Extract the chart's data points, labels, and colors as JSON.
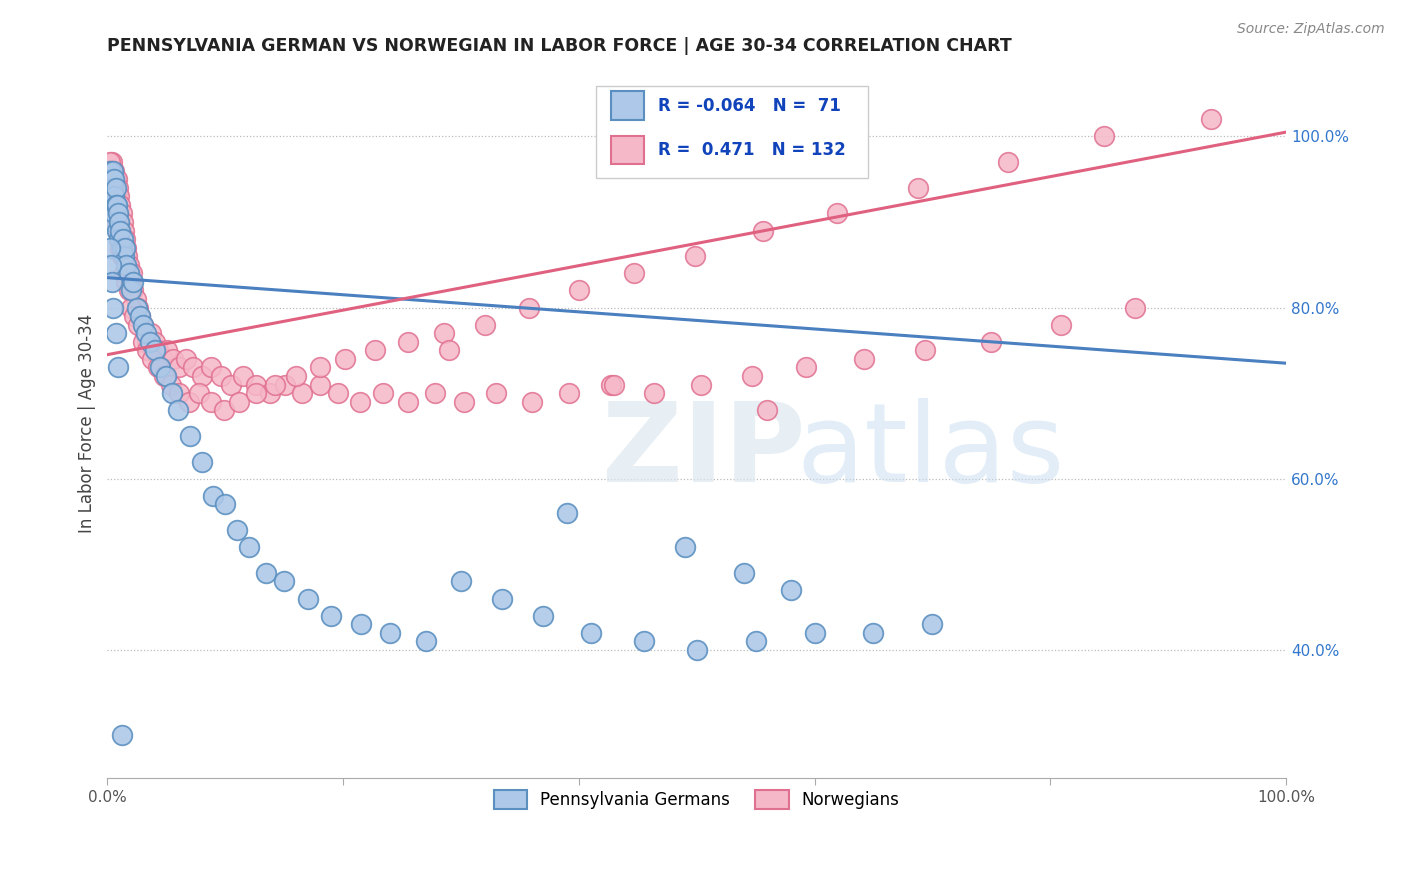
{
  "title": "PENNSYLVANIA GERMAN VS NORWEGIAN IN LABOR FORCE | AGE 30-34 CORRELATION CHART",
  "source": "Source: ZipAtlas.com",
  "ylabel": "In Labor Force | Age 30-34",
  "xlim": [
    0.0,
    1.0
  ],
  "ylim": [
    0.25,
    1.08
  ],
  "yticks": [
    0.4,
    0.6,
    0.8,
    1.0
  ],
  "ytick_labels": [
    "40.0%",
    "60.0%",
    "80.0%",
    "100.0%"
  ],
  "xticks": [
    0.0,
    0.2,
    0.4,
    0.6,
    0.8,
    1.0
  ],
  "xtick_labels": [
    "0.0%",
    "",
    "",
    "",
    "",
    "100.0%"
  ],
  "legend_labels": [
    "Pennsylvania Germans",
    "Norwegians"
  ],
  "r_blue": "-0.064",
  "n_blue": "71",
  "r_pink": "0.471",
  "n_pink": "132",
  "blue_fill": "#adc8e8",
  "blue_edge": "#5a8fc0",
  "pink_fill": "#f5b8c8",
  "pink_edge": "#e07090",
  "blue_line": "#4a7fc0",
  "pink_line": "#e06080",
  "blue_line_y0": 0.835,
  "blue_line_y1": 0.735,
  "pink_line_y0": 0.745,
  "pink_line_y1": 1.005,
  "blue_scatter_x": [
    0.002,
    0.003,
    0.003,
    0.004,
    0.004,
    0.005,
    0.005,
    0.005,
    0.006,
    0.006,
    0.006,
    0.007,
    0.007,
    0.008,
    0.008,
    0.009,
    0.01,
    0.01,
    0.011,
    0.012,
    0.013,
    0.014,
    0.015,
    0.016,
    0.018,
    0.02,
    0.022,
    0.025,
    0.028,
    0.03,
    0.033,
    0.036,
    0.04,
    0.045,
    0.05,
    0.055,
    0.06,
    0.07,
    0.08,
    0.09,
    0.1,
    0.11,
    0.12,
    0.135,
    0.15,
    0.17,
    0.19,
    0.215,
    0.24,
    0.27,
    0.3,
    0.335,
    0.37,
    0.41,
    0.455,
    0.5,
    0.55,
    0.6,
    0.65,
    0.7,
    0.39,
    0.49,
    0.54,
    0.58,
    0.002,
    0.003,
    0.004,
    0.005,
    0.007,
    0.009,
    0.012
  ],
  "blue_scatter_y": [
    0.96,
    0.95,
    0.93,
    0.95,
    0.92,
    0.96,
    0.94,
    0.9,
    0.95,
    0.93,
    0.91,
    0.94,
    0.92,
    0.92,
    0.89,
    0.91,
    0.9,
    0.88,
    0.89,
    0.87,
    0.88,
    0.86,
    0.87,
    0.85,
    0.84,
    0.82,
    0.83,
    0.8,
    0.79,
    0.78,
    0.77,
    0.76,
    0.75,
    0.73,
    0.72,
    0.7,
    0.68,
    0.65,
    0.62,
    0.58,
    0.57,
    0.54,
    0.52,
    0.49,
    0.48,
    0.46,
    0.44,
    0.43,
    0.42,
    0.41,
    0.48,
    0.46,
    0.44,
    0.42,
    0.41,
    0.4,
    0.41,
    0.42,
    0.42,
    0.43,
    0.56,
    0.52,
    0.49,
    0.47,
    0.87,
    0.85,
    0.83,
    0.8,
    0.77,
    0.73,
    0.3
  ],
  "pink_scatter_x": [
    0.002,
    0.003,
    0.003,
    0.004,
    0.004,
    0.004,
    0.005,
    0.005,
    0.005,
    0.006,
    0.006,
    0.006,
    0.007,
    0.007,
    0.007,
    0.008,
    0.008,
    0.008,
    0.009,
    0.009,
    0.01,
    0.01,
    0.011,
    0.011,
    0.012,
    0.012,
    0.013,
    0.013,
    0.014,
    0.015,
    0.016,
    0.017,
    0.018,
    0.019,
    0.02,
    0.021,
    0.022,
    0.024,
    0.026,
    0.028,
    0.03,
    0.032,
    0.034,
    0.037,
    0.04,
    0.043,
    0.047,
    0.051,
    0.056,
    0.061,
    0.067,
    0.073,
    0.08,
    0.088,
    0.096,
    0.105,
    0.115,
    0.126,
    0.138,
    0.151,
    0.165,
    0.18,
    0.196,
    0.214,
    0.234,
    0.255,
    0.278,
    0.303,
    0.33,
    0.36,
    0.392,
    0.427,
    0.464,
    0.504,
    0.547,
    0.593,
    0.642,
    0.694,
    0.75,
    0.809,
    0.872,
    0.002,
    0.003,
    0.004,
    0.005,
    0.006,
    0.007,
    0.008,
    0.009,
    0.01,
    0.011,
    0.012,
    0.014,
    0.016,
    0.018,
    0.02,
    0.023,
    0.026,
    0.03,
    0.034,
    0.038,
    0.043,
    0.048,
    0.054,
    0.061,
    0.069,
    0.078,
    0.088,
    0.099,
    0.112,
    0.126,
    0.142,
    0.16,
    0.18,
    0.202,
    0.227,
    0.255,
    0.286,
    0.32,
    0.358,
    0.4,
    0.447,
    0.499,
    0.556,
    0.619,
    0.688,
    0.764,
    0.846,
    0.936,
    0.29,
    0.43,
    0.56
  ],
  "pink_scatter_y": [
    0.94,
    0.96,
    0.93,
    0.97,
    0.95,
    0.92,
    0.96,
    0.94,
    0.91,
    0.96,
    0.94,
    0.91,
    0.95,
    0.93,
    0.9,
    0.95,
    0.93,
    0.9,
    0.94,
    0.91,
    0.93,
    0.9,
    0.92,
    0.89,
    0.91,
    0.88,
    0.9,
    0.87,
    0.89,
    0.88,
    0.87,
    0.86,
    0.85,
    0.84,
    0.83,
    0.84,
    0.82,
    0.81,
    0.8,
    0.79,
    0.78,
    0.77,
    0.76,
    0.77,
    0.76,
    0.75,
    0.74,
    0.75,
    0.74,
    0.73,
    0.74,
    0.73,
    0.72,
    0.73,
    0.72,
    0.71,
    0.72,
    0.71,
    0.7,
    0.71,
    0.7,
    0.71,
    0.7,
    0.69,
    0.7,
    0.69,
    0.7,
    0.69,
    0.7,
    0.69,
    0.7,
    0.71,
    0.7,
    0.71,
    0.72,
    0.73,
    0.74,
    0.75,
    0.76,
    0.78,
    0.8,
    0.97,
    0.96,
    0.95,
    0.94,
    0.93,
    0.92,
    0.91,
    0.89,
    0.88,
    0.87,
    0.86,
    0.84,
    0.83,
    0.82,
    0.8,
    0.79,
    0.78,
    0.76,
    0.75,
    0.74,
    0.73,
    0.72,
    0.71,
    0.7,
    0.69,
    0.7,
    0.69,
    0.68,
    0.69,
    0.7,
    0.71,
    0.72,
    0.73,
    0.74,
    0.75,
    0.76,
    0.77,
    0.78,
    0.8,
    0.82,
    0.84,
    0.86,
    0.89,
    0.91,
    0.94,
    0.97,
    1.0,
    1.02,
    0.75,
    0.71,
    0.68
  ]
}
